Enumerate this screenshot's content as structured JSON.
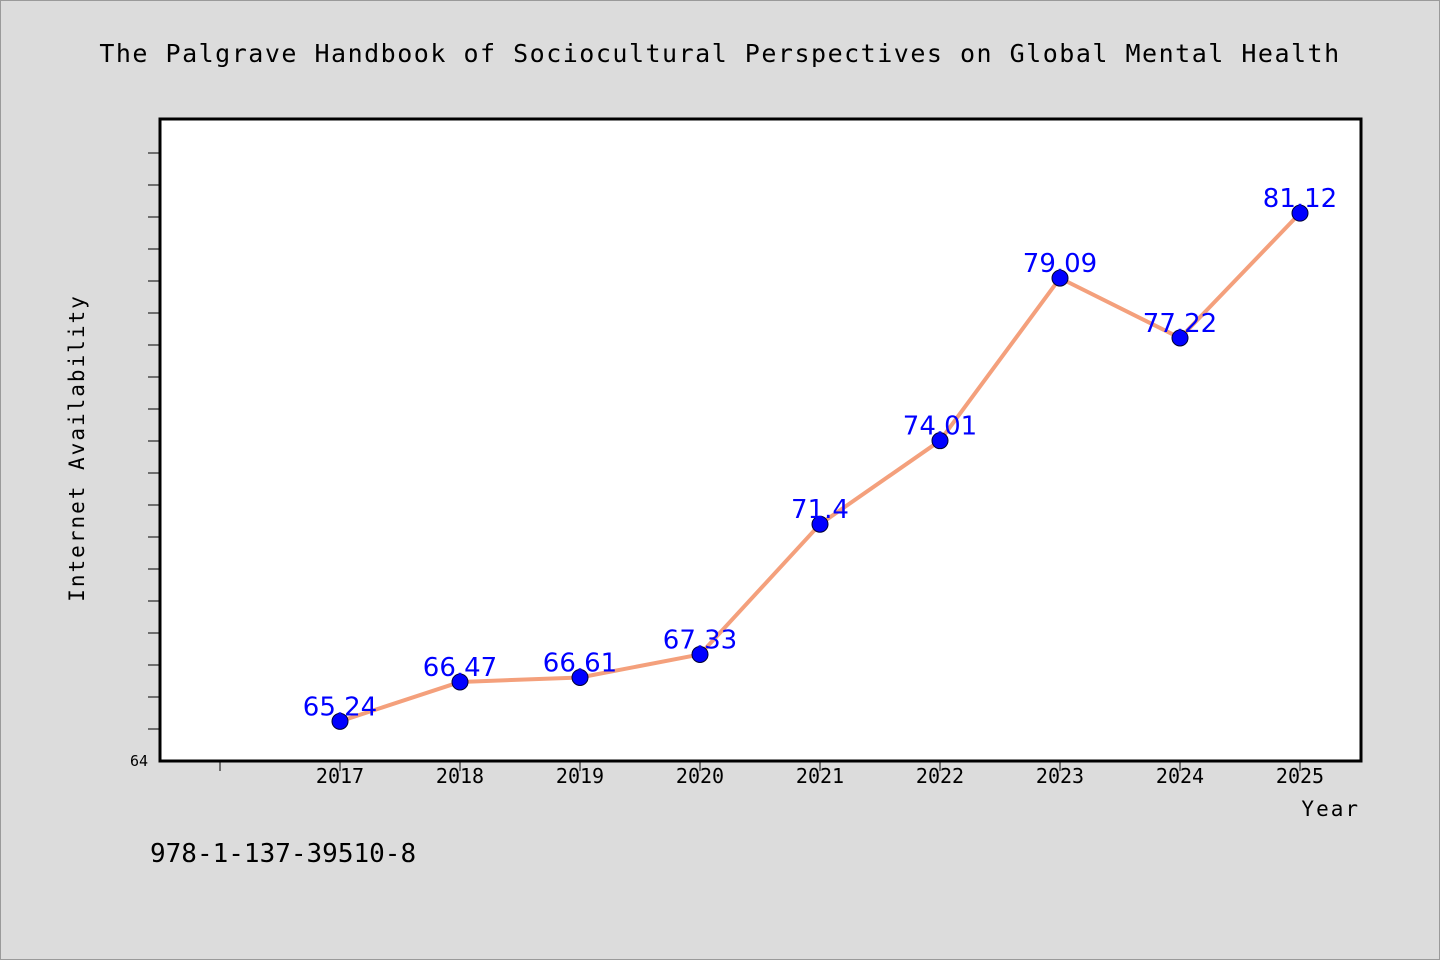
{
  "chart_data": {
    "type": "line",
    "title": "The Palgrave Handbook of Sociocultural Perspectives on Global Mental Health",
    "xlabel": "Year",
    "ylabel": "Internet Availability",
    "x": [
      "2017",
      "2018",
      "2019",
      "2020",
      "2021",
      "2022",
      "2023",
      "2024",
      "2025"
    ],
    "series": [
      {
        "values": [
          65.24,
          66.47,
          66.61,
          67.33,
          71.4,
          74.01,
          79.09,
          77.22,
          81.12
        ],
        "data_labels": [
          "65.24",
          "66.47",
          "66.61",
          "67.33",
          "71.4",
          "74.01",
          "79.09",
          "77.22",
          "81.12"
        ]
      }
    ],
    "ylim": [
      64,
      84
    ],
    "ytick_labels": [
      "64"
    ],
    "grid": false,
    "colors": {
      "line": "#f4a07c",
      "marker": "#0000ff",
      "data_label": "#0000ff",
      "plot_background": "#ffffff",
      "figure_background": "#dcdcdc"
    }
  },
  "footer": {
    "isbn": "978-1-137-39510-8"
  }
}
